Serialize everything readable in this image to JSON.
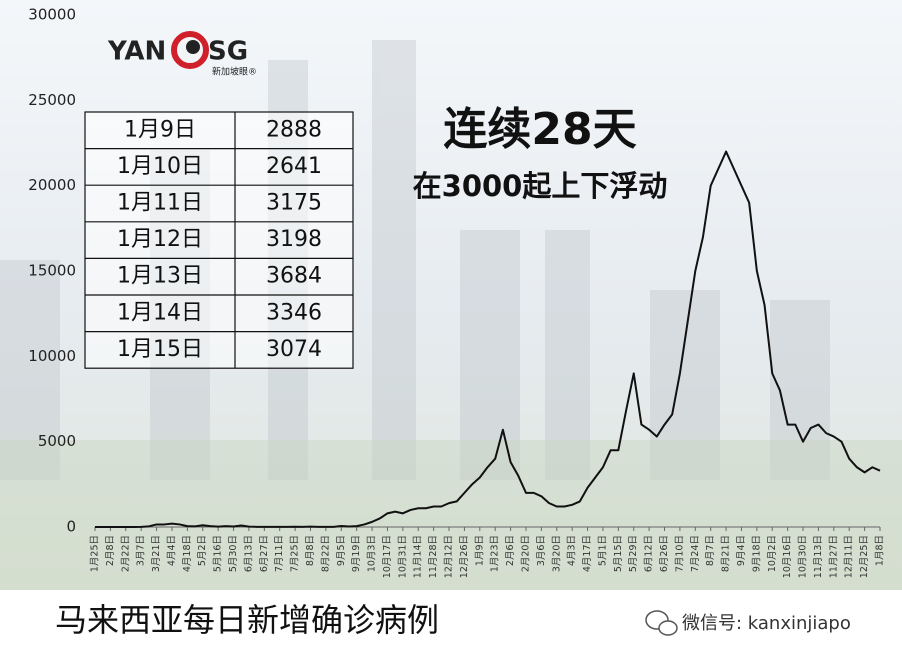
{
  "chart_data": {
    "type": "line",
    "title": "马来西亚每日新增确诊病例",
    "annotations": [
      "连续28天",
      "在3000起上下浮动"
    ],
    "color": "#111111",
    "categories": [
      "1月25日",
      null,
      "2月8日",
      null,
      "2月22日",
      null,
      "3月7日",
      null,
      "3月21日",
      null,
      "4月4日",
      null,
      "4月18日",
      null,
      "5月2日",
      null,
      "5月16日",
      null,
      "5月30日",
      null,
      "6月13日",
      null,
      "6月27日",
      null,
      "7月11日",
      null,
      "7月25日",
      null,
      "8月8日",
      null,
      "8月22日",
      null,
      "9月5日",
      null,
      "9月19日",
      null,
      "10月3日",
      null,
      "10月17日",
      null,
      "10月31日",
      null,
      "11月14日",
      null,
      "11月28日",
      null,
      "12月12日",
      null,
      "12月26日",
      null,
      "1月9日",
      null,
      "1月23日",
      null,
      "2月6日",
      null,
      "2月20日",
      null,
      "3月6日",
      null,
      "3月20日",
      null,
      "4月3日",
      null,
      "4月17日",
      null,
      "5月1日",
      null,
      "5月15日",
      null,
      "5月29日",
      null,
      "6月12日",
      null,
      "6月26日",
      null,
      "7月10日",
      null,
      "7月24日",
      null,
      "8月7日",
      null,
      "8月21日",
      null,
      "9月4日",
      null,
      "9月18日",
      null,
      "10月2日",
      null,
      "10月16日",
      null,
      "10月30日",
      null,
      "11月13日",
      null,
      "11月27日",
      null,
      "12月11日",
      null,
      "12月25日",
      null,
      "1月8日"
    ],
    "values": [
      0,
      0,
      0,
      0,
      0,
      0,
      10,
      40,
      150,
      150,
      200,
      150,
      50,
      40,
      100,
      50,
      20,
      50,
      30,
      90,
      20,
      10,
      5,
      5,
      10,
      10,
      15,
      10,
      20,
      10,
      5,
      10,
      60,
      30,
      50,
      150,
      300,
      500,
      800,
      900,
      800,
      1000,
      1100,
      1100,
      1200,
      1200,
      1400,
      1500,
      2000,
      2500,
      2900,
      3500,
      4000,
      5700,
      3800,
      3000,
      2000,
      2000,
      1800,
      1400,
      1200,
      1200,
      1300,
      1500,
      2300,
      2900,
      3500,
      4500,
      4500,
      6800,
      9000,
      6000,
      5700,
      5300,
      6000,
      6600,
      9000,
      12000,
      15000,
      17000,
      20000,
      21000,
      22000,
      21000,
      20000,
      19000,
      15000,
      13000,
      9000,
      8000,
      6000,
      6000,
      5000,
      5800,
      6000,
      5500,
      5300,
      5000,
      4000,
      3500,
      3200,
      3500,
      3300
    ],
    "ylim": [
      0,
      30000
    ],
    "yticks": [
      0,
      5000,
      10000,
      15000,
      20000,
      25000,
      30000
    ],
    "grid": false
  },
  "table": {
    "rows": [
      [
        "1月9日",
        "2888"
      ],
      [
        "1月10日",
        "2641"
      ],
      [
        "1月11日",
        "3175"
      ],
      [
        "1月12日",
        "3198"
      ],
      [
        "1月13日",
        "3684"
      ],
      [
        "1月14日",
        "3346"
      ],
      [
        "1月15日",
        "3074"
      ]
    ]
  },
  "logo": {
    "left": "YAN",
    "right": "SG",
    "sub": "新加坡眼®"
  },
  "watermark": "微信号: kanxinjiapo"
}
